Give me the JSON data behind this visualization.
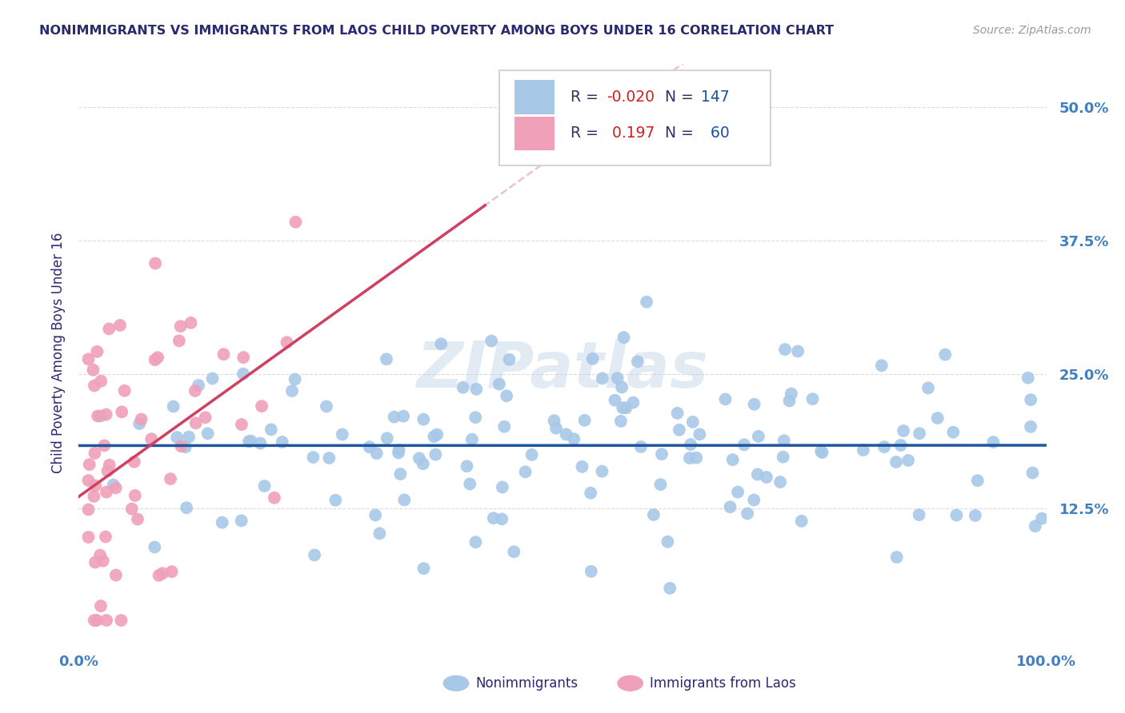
{
  "title": "NONIMMIGRANTS VS IMMIGRANTS FROM LAOS CHILD POVERTY AMONG BOYS UNDER 16 CORRELATION CHART",
  "source": "Source: ZipAtlas.com",
  "ylabel": "Child Poverty Among Boys Under 16",
  "ytick_labels": [
    "12.5%",
    "25.0%",
    "37.5%",
    "50.0%"
  ],
  "ytick_values": [
    0.125,
    0.25,
    0.375,
    0.5
  ],
  "xlim": [
    0.0,
    1.0
  ],
  "ylim": [
    0.0,
    0.54
  ],
  "legend_nonimm_R": "-0.020",
  "legend_nonimm_N": "147",
  "legend_imm_R": "0.197",
  "legend_imm_N": "60",
  "nonimm_color": "#a8c8e8",
  "imm_color": "#f0a0b8",
  "nonimm_line_color": "#1e56a0",
  "imm_line_color": "#d04060",
  "imm_dash_color": "#e8b8c8",
  "background_color": "#ffffff",
  "watermark": "ZIPatlas",
  "title_color": "#2a2a6e",
  "axis_label_color": "#2a2a6e",
  "tick_label_color": "#4080c0",
  "grid_color": "#d8d8d8",
  "source_color": "#999999"
}
